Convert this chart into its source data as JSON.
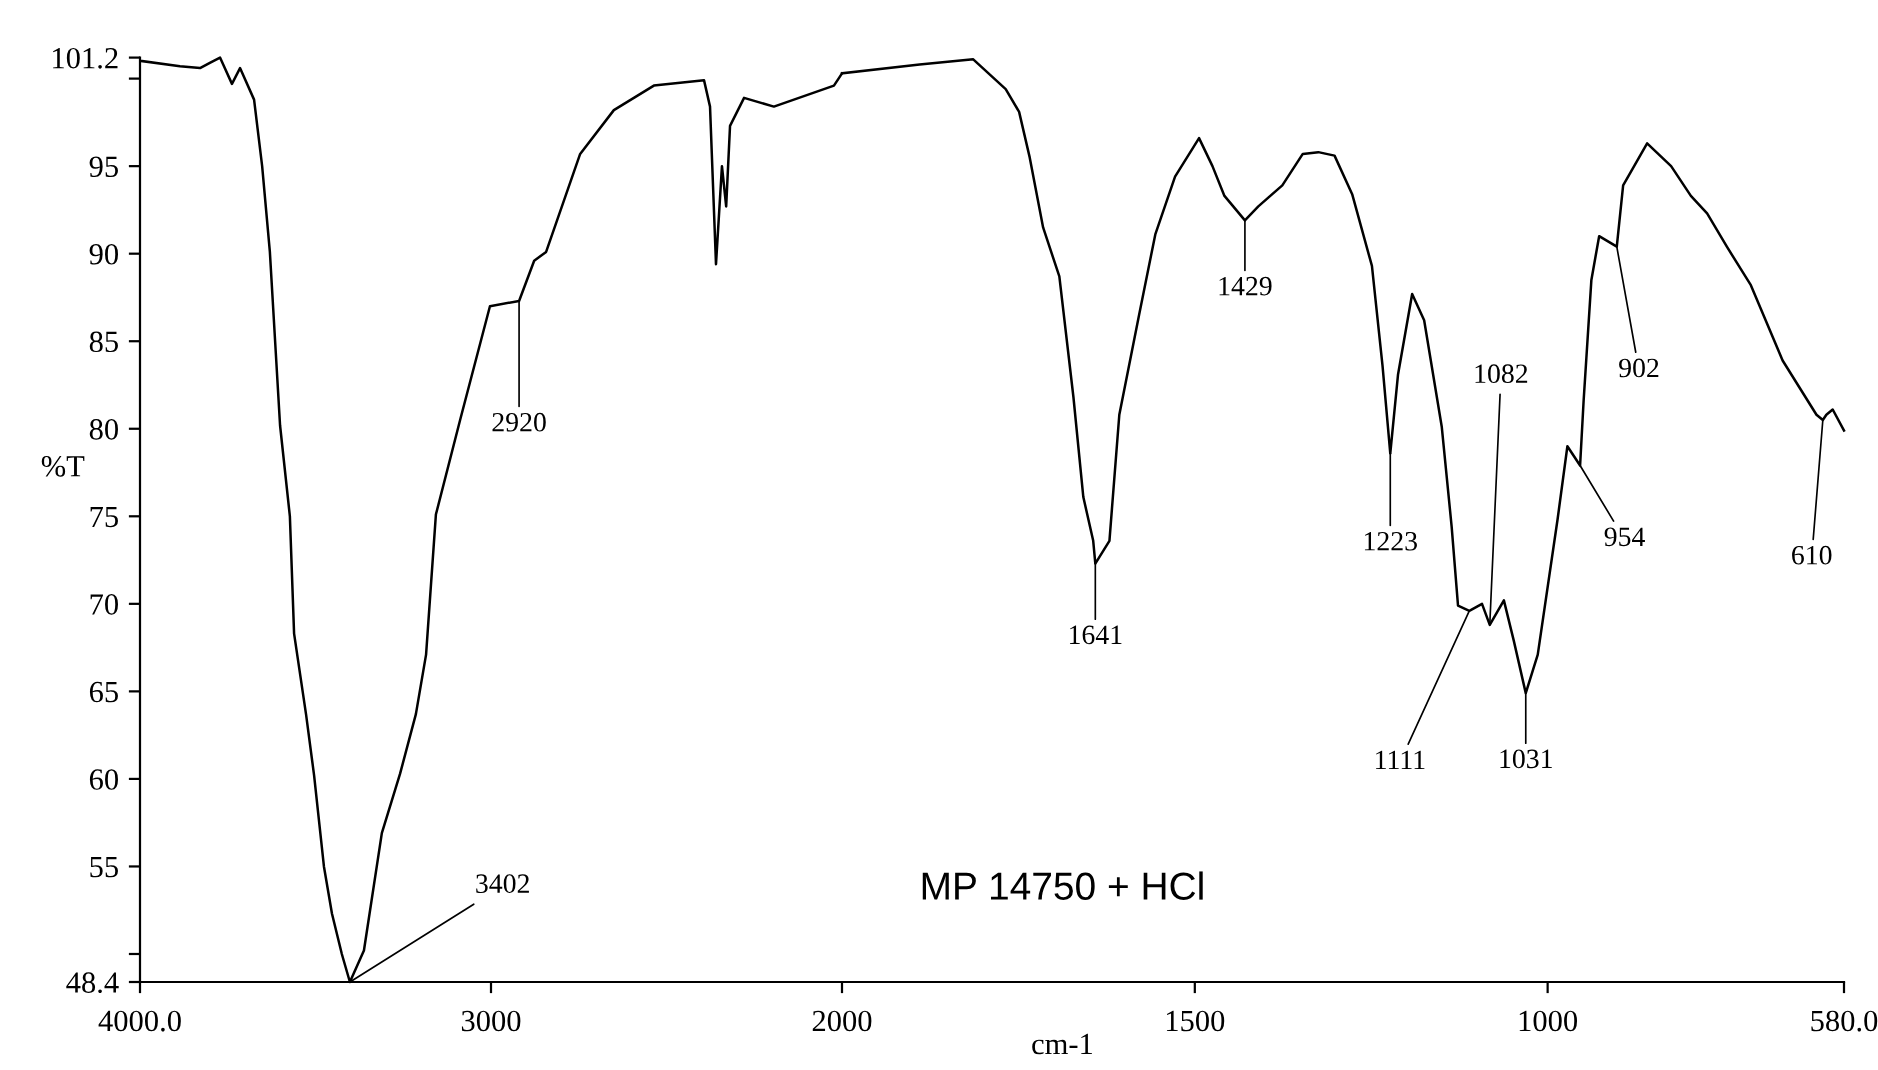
{
  "chart_data": [
    {
      "type": "line",
      "ylabel": "%T",
      "x": [
        3994,
        3886,
        3829,
        3801,
        3772,
        3738,
        3715,
        3675,
        3652,
        3630,
        3601,
        3573,
        3561,
        3527,
        3504,
        3476,
        3453,
        3425,
        3402,
        3362,
        3311,
        3259,
        3214,
        3185,
        3157,
        3088,
        3003,
        2920,
        2877,
        2843,
        2746,
        2650,
        2536,
        2393,
        2376,
        2359,
        2342,
        2330,
        2319,
        2279,
        2194,
        2023,
        2000
      ],
      "series": [
        {
          "color": "#000000",
          "values": [
            101.0,
            100.7,
            100.6,
            100.9,
            101.2,
            99.7,
            100.6,
            98.8,
            95.0,
            90.1,
            80.2,
            75.0,
            68.3,
            63.7,
            60.2,
            55.0,
            52.3,
            50.0,
            48.4,
            50.2,
            56.9,
            60.3,
            63.7,
            67.1,
            75.1,
            80.5,
            87.0,
            87.3,
            89.6,
            90.1,
            95.7,
            98.2,
            99.6,
            99.9,
            98.4,
            89.4,
            95.0,
            92.7,
            97.3,
            98.9,
            98.4,
            99.6,
            100.3
          ]
        }
      ],
      "xlim": [
        4000,
        2000
      ],
      "xticks": [
        {
          "value": 4000,
          "label": "4000.0"
        },
        3000,
        2000
      ],
      "ylim": [
        48.4,
        101.2
      ],
      "yticks": [
        48.4,
        {
          "value": 50,
          "label": null
        },
        55,
        60,
        65,
        70,
        75,
        80,
        85,
        90,
        95,
        {
          "value": 100,
          "label": null
        },
        101.2
      ],
      "grid": false,
      "marker": "none",
      "line_style": "solid",
      "annotations": [
        {
          "text": "3402",
          "x": 3402,
          "y": 48.4
        },
        {
          "text": "2920",
          "x": 2920,
          "y": 87.3
        }
      ]
    },
    {
      "type": "line",
      "xlabel": "cm-1",
      "x": [
        2000,
        1890,
        1814,
        1768,
        1749,
        1734,
        1715,
        1692,
        1672,
        1658,
        1644,
        1641,
        1621,
        1607,
        1579,
        1556,
        1528,
        1494,
        1475,
        1458,
        1429,
        1410,
        1376,
        1347,
        1325,
        1302,
        1277,
        1249,
        1234,
        1223,
        1212,
        1192,
        1175,
        1150,
        1136,
        1127,
        1111,
        1093,
        1082,
        1062,
        1048,
        1031,
        1014,
        986,
        972,
        954,
        949,
        938,
        927,
        902,
        893,
        859,
        825,
        797,
        774,
        746,
        712,
        667,
        619,
        610,
        605,
        596,
        580
      ],
      "series": [
        {
          "color": "#000000",
          "values": [
            100.3,
            100.8,
            101.1,
            99.4,
            98.1,
            95.5,
            91.5,
            88.7,
            81.8,
            76.1,
            73.6,
            72.3,
            73.6,
            80.8,
            86.5,
            91.1,
            94.4,
            96.6,
            95.0,
            93.3,
            91.9,
            92.7,
            93.9,
            95.7,
            95.8,
            95.6,
            93.4,
            89.3,
            83.6,
            78.6,
            83.1,
            87.7,
            86.2,
            80.1,
            74.4,
            69.9,
            69.6,
            70.0,
            68.8,
            70.2,
            67.9,
            64.9,
            67.1,
            74.8,
            79.0,
            77.9,
            81.6,
            88.5,
            91.0,
            90.4,
            93.9,
            96.3,
            95.0,
            93.3,
            92.3,
            90.4,
            88.2,
            83.9,
            80.8,
            80.5,
            80.8,
            81.1,
            79.9
          ]
        }
      ],
      "xlim": [
        2000,
        580
      ],
      "xticks": [
        1500,
        1000,
        {
          "value": 580,
          "label": "580.0"
        }
      ],
      "ylim": [
        48.4,
        101.2
      ],
      "tick_labels": "x",
      "grid": false,
      "marker": "none",
      "line_style": "solid",
      "annotations": [
        {
          "text": "1641",
          "x": 1641,
          "y": 72.3
        },
        {
          "text": "1429",
          "x": 1429,
          "y": 91.9
        },
        {
          "text": "1223",
          "x": 1223,
          "y": 78.6
        },
        {
          "text": "1111",
          "x": 1111,
          "y": 69.6
        },
        {
          "text": "1082",
          "x": 1082,
          "y": 68.8
        },
        {
          "text": "1031",
          "x": 1031,
          "y": 64.9
        },
        {
          "text": "954",
          "x": 954,
          "y": 77.9
        },
        {
          "text": "902",
          "x": 902,
          "y": 90.4
        },
        {
          "text": "610",
          "x": 610,
          "y": 80.5
        },
        "MP 14750 + HCl"
      ]
    }
  ]
}
